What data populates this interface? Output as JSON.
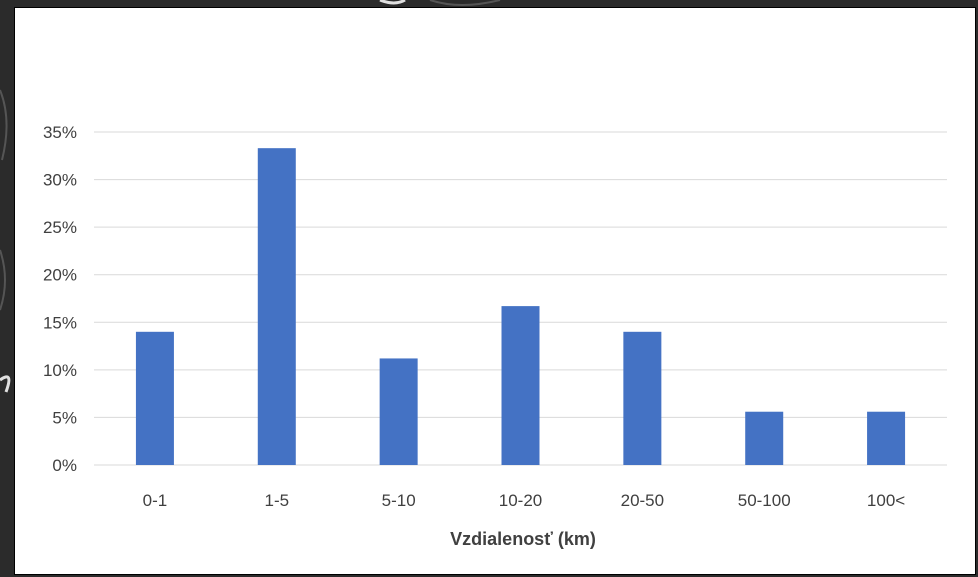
{
  "chart_data": {
    "type": "bar",
    "title": "",
    "xlabel": "Vzdialenosť (km)",
    "ylabel": "",
    "categories": [
      "0-1",
      "1-5",
      "5-10",
      "10-20",
      "20-50",
      "50-100",
      "100<"
    ],
    "values": [
      14,
      33.3,
      11.2,
      16.7,
      14,
      5.6,
      5.6
    ],
    "ylim": [
      0,
      35
    ],
    "yticks": [
      0,
      5,
      10,
      15,
      20,
      25,
      30,
      35
    ],
    "ytick_labels": [
      "0%",
      "5%",
      "10%",
      "15%",
      "20%",
      "25%",
      "30%",
      "35%"
    ],
    "grid": true,
    "legend": "none",
    "bar_color": "#4472C4",
    "grid_color": "#D9D9D9"
  }
}
